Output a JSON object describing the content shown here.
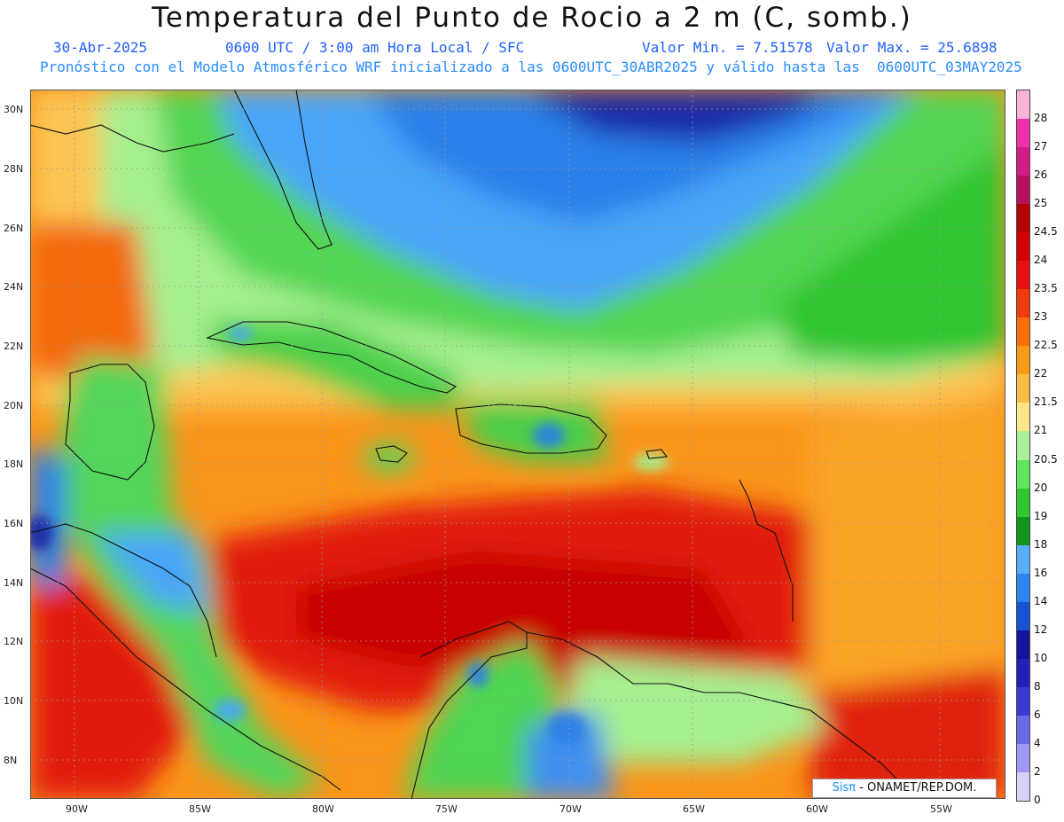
{
  "header": {
    "title": "Temperatura del Punto de Rocio a 2 m (C, somb.)",
    "date": "30-Abr-2025",
    "time": "0600 UTC / 3:00 am Hora Local / SFC",
    "vmin": "Valor Min. = 7.51578",
    "vmax": "Valor Max. = 25.6898",
    "forecast": "Pronóstico con el Modelo Atmosférico WRF inicializado a las 0600UTC_30ABR2025 y válido hasta las  0600UTC_03MAY2025"
  },
  "map": {
    "lat_labels": [
      "30N",
      "28N",
      "26N",
      "24N",
      "22N",
      "20N",
      "18N",
      "16N",
      "14N",
      "12N",
      "10N",
      "8N"
    ],
    "lon_labels": [
      "90W",
      "85W",
      "80W",
      "75W",
      "70W",
      "65W",
      "60W",
      "55W"
    ]
  },
  "colorbar": {
    "labels": [
      "28",
      "27",
      "26",
      "25",
      "24.5",
      "24",
      "23.5",
      "23",
      "22.5",
      "22",
      "21.5",
      "21",
      "20.5",
      "20",
      "19",
      "18",
      "16",
      "14",
      "12",
      "10",
      "8",
      "6",
      "4",
      "2",
      "0"
    ],
    "colors": [
      "#f7b3d8",
      "#ee2fa5",
      "#d01c86",
      "#b8125e",
      "#b40000",
      "#d20000",
      "#e41010",
      "#f03a0a",
      "#fb6e0a",
      "#fb9a14",
      "#fcbc44",
      "#fde487",
      "#a9f29a",
      "#5fe55c",
      "#33c633",
      "#11951a",
      "#5aaeff",
      "#2c84ee",
      "#1654d4",
      "#17139b",
      "#2520ba",
      "#3a3ad0",
      "#6a6ae6",
      "#9e98f4",
      "#d6d3f8"
    ]
  },
  "credit": {
    "sis": "Sisπ",
    "text": " - ONAMET/REP.DOM."
  }
}
